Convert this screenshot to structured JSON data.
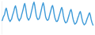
{
  "chart_data": {
    "type": "line",
    "color": "#3d9ad8",
    "tick_labels": false,
    "grid": false,
    "ylim": [
      0,
      100
    ],
    "values": [
      40,
      42,
      50,
      55,
      60,
      72,
      78,
      70,
      58,
      48,
      42,
      38,
      42,
      45,
      55,
      62,
      70,
      80,
      85,
      76,
      62,
      50,
      44,
      40,
      45,
      48,
      58,
      66,
      75,
      86,
      92,
      82,
      66,
      52,
      46,
      42,
      46,
      50,
      60,
      70,
      80,
      90,
      96,
      86,
      70,
      55,
      48,
      44,
      45,
      48,
      58,
      68,
      78,
      88,
      94,
      84,
      68,
      53,
      46,
      42,
      42,
      45,
      55,
      64,
      72,
      82,
      86,
      78,
      62,
      50,
      43,
      38,
      38,
      42,
      50,
      58,
      66,
      75,
      80,
      72,
      56,
      45,
      38,
      34,
      35,
      38,
      46,
      54,
      62,
      70,
      74,
      66,
      52,
      42,
      35,
      30,
      32,
      35,
      42,
      50,
      56,
      64,
      68,
      60,
      48,
      38,
      32,
      28,
      30,
      33,
      40,
      47,
      53,
      60,
      64,
      57,
      45,
      36,
      30,
      26
    ]
  }
}
